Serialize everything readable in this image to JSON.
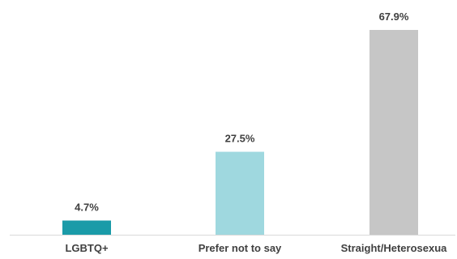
{
  "chart_data": {
    "type": "bar",
    "title": "",
    "xlabel": "",
    "ylabel": "",
    "categories": [
      "LGBTQ+",
      "Prefer not to say",
      "Straight/Heterosexua"
    ],
    "values": [
      4.7,
      27.5,
      67.9
    ],
    "data_labels": [
      "4.7%",
      "27.5%",
      "67.9%"
    ],
    "colors": [
      "#1a9ba8",
      "#9fd8df",
      "#c6c6c6"
    ],
    "axis_color": "#d9d9d9",
    "ylim": [
      0,
      67.9
    ],
    "grid": false,
    "legend": "none"
  }
}
